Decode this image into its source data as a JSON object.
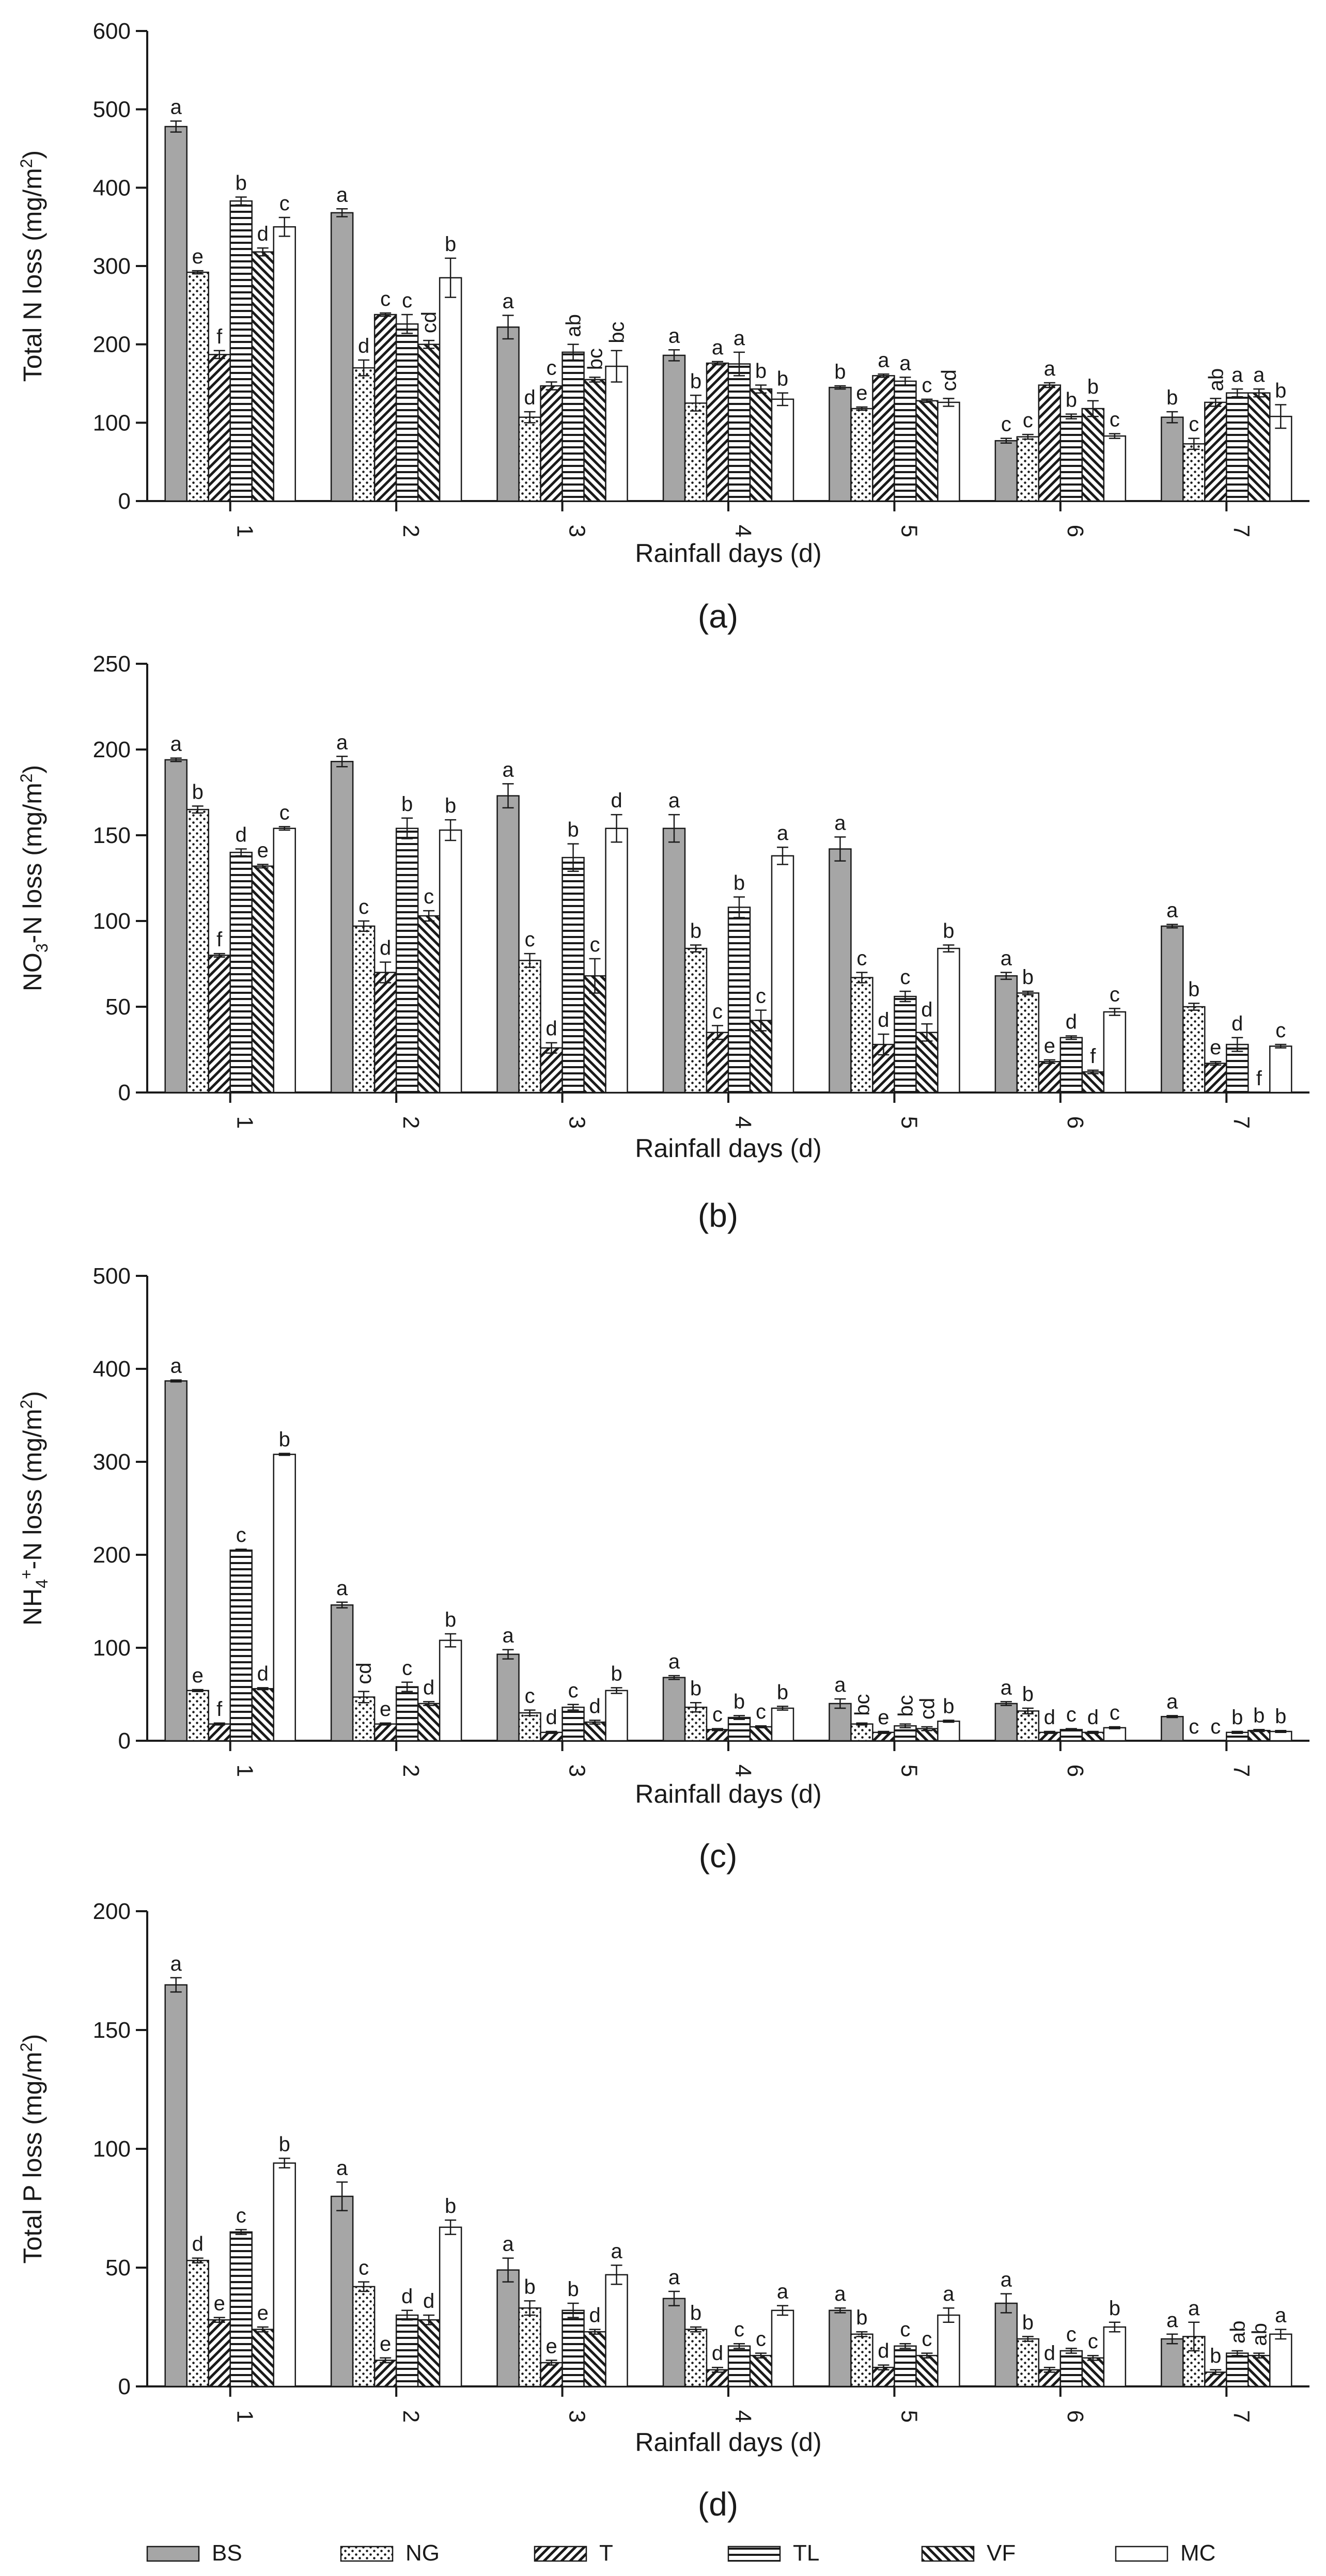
{
  "legend": [
    {
      "key": "BS",
      "label": "BS"
    },
    {
      "key": "NG",
      "label": "NG"
    },
    {
      "key": "T",
      "label": "T"
    },
    {
      "key": "TL",
      "label": "TL"
    },
    {
      "key": "VF",
      "label": "VF"
    },
    {
      "key": "MC",
      "label": "MC"
    }
  ],
  "colors": {
    "bar_solid": "#a6a6a6",
    "stroke": "#1a1a1a",
    "background": "#ffffff"
  },
  "chart_data": [
    {
      "type": "bar",
      "panel_label": "(a)",
      "ylabel_parts": [
        "Total N loss (mg/m",
        "2",
        ")"
      ],
      "xlabel": "Rainfall days (d)",
      "ylim": [
        0,
        600
      ],
      "yticks": [
        "0",
        "100",
        "200",
        "300",
        "400",
        "500",
        "600"
      ],
      "categories": [
        "1",
        "2",
        "3",
        "4",
        "5",
        "6",
        "7"
      ],
      "series": [
        {
          "name": "BS",
          "values": [
            478,
            368,
            222,
            186,
            145,
            77,
            107
          ],
          "errors": [
            7,
            5,
            15,
            7,
            2,
            3,
            7
          ],
          "letters": [
            "a",
            "a",
            "a",
            "a",
            "b",
            "c",
            "b"
          ]
        },
        {
          "name": "NG",
          "values": [
            292,
            170,
            107,
            125,
            118,
            82,
            73
          ],
          "errors": [
            2,
            10,
            7,
            10,
            2,
            3,
            7
          ],
          "letters": [
            "e",
            "d",
            "d",
            "b",
            "e",
            "c",
            "c"
          ]
        },
        {
          "name": "T",
          "values": [
            187,
            238,
            147,
            176,
            160,
            148,
            126
          ],
          "errors": [
            5,
            2,
            5,
            2,
            2,
            3,
            5
          ],
          "letters": [
            "f",
            "c",
            "c",
            "a",
            "a",
            "a",
            "ab"
          ]
        },
        {
          "name": "TL",
          "values": [
            383,
            226,
            190,
            175,
            153,
            108,
            138
          ],
          "errors": [
            5,
            12,
            10,
            15,
            5,
            3,
            5
          ],
          "letters": [
            "b",
            "c",
            "ab",
            "a",
            "a",
            "b",
            "a"
          ]
        },
        {
          "name": "VF",
          "values": [
            318,
            200,
            155,
            143,
            128,
            118,
            138
          ],
          "errors": [
            5,
            5,
            3,
            5,
            2,
            10,
            5
          ],
          "letters": [
            "d",
            "cd",
            "bc",
            "b",
            "c",
            "b",
            "a"
          ]
        },
        {
          "name": "MC",
          "values": [
            350,
            285,
            172,
            130,
            126,
            83,
            108
          ],
          "errors": [
            12,
            25,
            20,
            8,
            5,
            3,
            15
          ],
          "letters": [
            "c",
            "b",
            "bc",
            "b",
            "cd",
            "c",
            "b"
          ]
        }
      ]
    },
    {
      "type": "bar",
      "panel_label": "(b)",
      "ylabel_parts": [
        "NO",
        "3",
        "-N loss (mg/m",
        "2",
        ")"
      ],
      "xlabel": "Rainfall days (d)",
      "ylim": [
        0,
        250
      ],
      "yticks": [
        "0",
        "50",
        "100",
        "150",
        "200",
        "250"
      ],
      "categories": [
        "1",
        "2",
        "3",
        "4",
        "5",
        "6",
        "7"
      ],
      "series": [
        {
          "name": "BS",
          "values": [
            194,
            193,
            173,
            154,
            142,
            68,
            97
          ],
          "errors": [
            1,
            3,
            7,
            8,
            7,
            2,
            1
          ],
          "letters": [
            "a",
            "a",
            "a",
            "a",
            "a",
            "a",
            "a"
          ]
        },
        {
          "name": "NG",
          "values": [
            165,
            97,
            77,
            84,
            67,
            58,
            50
          ],
          "errors": [
            2,
            3,
            4,
            2,
            3,
            1,
            2
          ],
          "letters": [
            "b",
            "c",
            "c",
            "b",
            "c",
            "b",
            "b"
          ]
        },
        {
          "name": "T",
          "values": [
            80,
            70,
            26,
            35,
            28,
            18,
            17
          ],
          "errors": [
            1,
            6,
            3,
            4,
            6,
            1,
            1
          ],
          "letters": [
            "f",
            "d",
            "d",
            "c",
            "d",
            "e",
            "e"
          ]
        },
        {
          "name": "TL",
          "values": [
            140,
            154,
            137,
            108,
            56,
            32,
            28
          ],
          "errors": [
            2,
            6,
            8,
            6,
            3,
            1,
            4
          ],
          "letters": [
            "d",
            "b",
            "b",
            "b",
            "c",
            "d",
            "d"
          ]
        },
        {
          "name": "VF",
          "values": [
            132,
            103,
            68,
            42,
            35,
            12,
            0
          ],
          "errors": [
            1,
            3,
            10,
            6,
            5,
            1,
            0
          ],
          "letters": [
            "e",
            "c",
            "c",
            "c",
            "d",
            "f",
            "f"
          ]
        },
        {
          "name": "MC",
          "values": [
            154,
            153,
            154,
            138,
            84,
            47,
            27
          ],
          "errors": [
            1,
            6,
            8,
            5,
            2,
            2,
            1
          ],
          "letters": [
            "c",
            "b",
            "d",
            "a",
            "b",
            "c",
            "c"
          ]
        }
      ]
    },
    {
      "type": "bar",
      "panel_label": "(c)",
      "ylabel_parts": [
        "NH",
        "4",
        "+",
        "-N loss (mg/m",
        "2",
        ")"
      ],
      "xlabel": "Rainfall days (d)",
      "ylim": [
        0,
        500
      ],
      "yticks": [
        "0",
        "100",
        "200",
        "300",
        "400",
        "500"
      ],
      "categories": [
        "1",
        "2",
        "3",
        "4",
        "5",
        "6",
        "7"
      ],
      "series": [
        {
          "name": "BS",
          "values": [
            387,
            146,
            93,
            68,
            40,
            40,
            26
          ],
          "errors": [
            1,
            3,
            5,
            2,
            5,
            2,
            1
          ],
          "letters": [
            "a",
            "a",
            "a",
            "a",
            "a",
            "a",
            "a"
          ]
        },
        {
          "name": "NG",
          "values": [
            54,
            47,
            30,
            36,
            18,
            32,
            0
          ],
          "errors": [
            1,
            6,
            3,
            5,
            1,
            3,
            0
          ],
          "letters": [
            "e",
            "cd",
            "c",
            "b",
            "bc",
            "b",
            "c"
          ]
        },
        {
          "name": "T",
          "values": [
            18,
            18,
            9,
            12,
            9,
            9,
            0
          ],
          "errors": [
            1,
            1,
            1,
            1,
            1,
            1,
            0
          ],
          "letters": [
            "f",
            "e",
            "d",
            "c",
            "e",
            "d",
            "c"
          ]
        },
        {
          "name": "TL",
          "values": [
            205,
            58,
            36,
            25,
            16,
            12,
            9
          ],
          "errors": [
            1,
            5,
            3,
            2,
            2,
            1,
            1
          ],
          "letters": [
            "c",
            "c",
            "c",
            "b",
            "bc",
            "c",
            "b"
          ]
        },
        {
          "name": "VF",
          "values": [
            56,
            40,
            20,
            15,
            13,
            9,
            11
          ],
          "errors": [
            1,
            2,
            2,
            1,
            2,
            1,
            1
          ],
          "letters": [
            "d",
            "d",
            "d",
            "c",
            "cd",
            "d",
            "b"
          ]
        },
        {
          "name": "MC",
          "values": [
            308,
            108,
            54,
            35,
            21,
            14,
            10
          ],
          "errors": [
            1,
            7,
            3,
            2,
            1,
            1,
            1
          ],
          "letters": [
            "b",
            "b",
            "b",
            "b",
            "b",
            "c",
            "b"
          ]
        }
      ]
    },
    {
      "type": "bar",
      "panel_label": "(d)",
      "ylabel_parts": [
        "Total P loss (mg/m",
        "2",
        ")"
      ],
      "xlabel": "Rainfall days (d)",
      "ylim": [
        0,
        200
      ],
      "yticks": [
        "0",
        "50",
        "100",
        "150",
        "200"
      ],
      "categories": [
        "1",
        "2",
        "3",
        "4",
        "5",
        "6",
        "7"
      ],
      "series": [
        {
          "name": "BS",
          "values": [
            169,
            80,
            49,
            37,
            32,
            35,
            20
          ],
          "errors": [
            3,
            6,
            5,
            3,
            1,
            4,
            2
          ],
          "letters": [
            "a",
            "a",
            "a",
            "a",
            "a",
            "a",
            "a"
          ]
        },
        {
          "name": "NG",
          "values": [
            53,
            42,
            33,
            24,
            22,
            20,
            21
          ],
          "errors": [
            1,
            2,
            3,
            1,
            1,
            1,
            6
          ],
          "letters": [
            "d",
            "c",
            "b",
            "b",
            "b",
            "b",
            "a"
          ]
        },
        {
          "name": "T",
          "values": [
            28,
            11,
            10,
            7,
            8,
            7,
            6
          ],
          "errors": [
            1,
            1,
            1,
            1,
            1,
            1,
            1
          ],
          "letters": [
            "e",
            "e",
            "e",
            "d",
            "d",
            "d",
            "b"
          ]
        },
        {
          "name": "TL",
          "values": [
            65,
            30,
            32,
            17,
            17,
            15,
            14
          ],
          "errors": [
            1,
            2,
            3,
            1,
            1,
            1,
            1
          ],
          "letters": [
            "c",
            "d",
            "b",
            "c",
            "c",
            "c",
            "ab"
          ]
        },
        {
          "name": "VF",
          "values": [
            24,
            28,
            23,
            13,
            13,
            12,
            13
          ],
          "errors": [
            1,
            2,
            1,
            1,
            1,
            1,
            1
          ],
          "letters": [
            "e",
            "d",
            "d",
            "c",
            "c",
            "c",
            "ab"
          ]
        },
        {
          "name": "MC",
          "values": [
            94,
            67,
            47,
            32,
            30,
            25,
            22
          ],
          "errors": [
            2,
            3,
            4,
            2,
            3,
            2,
            2
          ],
          "letters": [
            "b",
            "b",
            "a",
            "a",
            "a",
            "b",
            "a"
          ]
        }
      ]
    }
  ]
}
